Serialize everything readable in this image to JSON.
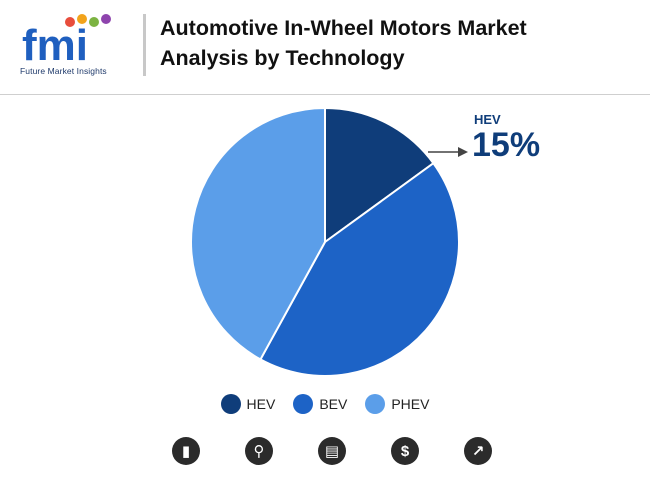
{
  "brand": {
    "logo_text": "fmi",
    "tagline": "Future Market Insights"
  },
  "header": {
    "title_line1": "Automotive In-Wheel Motors Market",
    "title_line2": "Analysis by Technology"
  },
  "callout": {
    "label": "HEV",
    "value": "15%"
  },
  "chart_data": {
    "type": "pie",
    "slices": [
      {
        "label": "HEV",
        "value": 15,
        "color": "#0f3d7a"
      },
      {
        "label": "BEV",
        "value": 43,
        "color": "#1d63c6"
      },
      {
        "label": "PHEV",
        "value": 42,
        "color": "#5b9ee9"
      }
    ],
    "legend_position": "bottom"
  },
  "footer_icons": [
    "bar-chart-icon",
    "magnifier-chart-icon",
    "document-icon",
    "dollar-icon",
    "trend-chart-icon"
  ],
  "footer_glyphs": [
    "▮",
    "⚲",
    "▤",
    "$",
    "↗"
  ]
}
